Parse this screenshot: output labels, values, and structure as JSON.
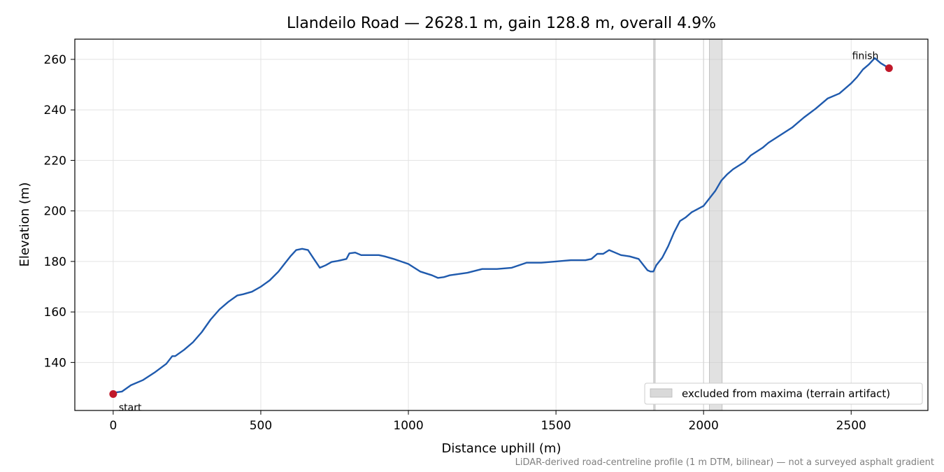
{
  "chart_data": {
    "type": "line",
    "title": "Llandeilo Road — 2628.1 m, gain 128.8 m, overall 4.9%",
    "xlabel": "Distance uphill (m)",
    "ylabel": "Elevation (m)",
    "xlim": [
      -130,
      2760
    ],
    "ylim": [
      121,
      268
    ],
    "xticks": [
      0,
      500,
      1000,
      1500,
      2000,
      2500
    ],
    "yticks": [
      140,
      160,
      180,
      200,
      220,
      240,
      260
    ],
    "grid": true,
    "series": [
      {
        "color": "#1f5aad",
        "x": [
          0,
          30,
          60,
          100,
          140,
          180,
          200,
          210,
          240,
          270,
          300,
          330,
          360,
          390,
          420,
          440,
          470,
          500,
          530,
          560,
          580,
          600,
          620,
          640,
          660,
          680,
          700,
          720,
          740,
          760,
          790,
          800,
          820,
          840,
          860,
          880,
          900,
          920,
          950,
          1000,
          1040,
          1080,
          1100,
          1120,
          1140,
          1200,
          1250,
          1300,
          1350,
          1400,
          1450,
          1500,
          1550,
          1600,
          1620,
          1640,
          1660,
          1680,
          1700,
          1720,
          1750,
          1780,
          1800,
          1810,
          1820,
          1830,
          1840,
          1860,
          1880,
          1900,
          1920,
          1940,
          1960,
          2000,
          2020,
          2040,
          2060,
          2080,
          2100,
          2140,
          2160,
          2200,
          2220,
          2260,
          2300,
          2340,
          2380,
          2420,
          2460,
          2500,
          2520,
          2540,
          2560,
          2580,
          2600,
          2628
        ],
        "y": [
          128,
          128.5,
          131,
          133,
          136,
          139.5,
          142.5,
          142.5,
          145,
          148,
          152,
          157,
          161,
          164,
          166.5,
          167,
          168,
          170,
          172.5,
          176,
          179,
          182,
          184.5,
          185,
          184.5,
          181,
          177.5,
          178.5,
          179.8,
          180.2,
          181,
          183.2,
          183.5,
          182.5,
          182.5,
          182.5,
          182.5,
          182,
          181,
          179,
          176,
          174.5,
          173.5,
          173.8,
          174.5,
          175.5,
          177,
          177,
          177.5,
          179.5,
          179.5,
          180,
          180.5,
          180.5,
          181,
          183,
          183,
          184.5,
          183.5,
          182.5,
          182,
          181,
          178,
          176.5,
          176,
          176,
          178.5,
          181.5,
          186,
          191.5,
          196,
          197.5,
          199.5,
          202,
          205,
          208,
          212,
          214.5,
          216.5,
          219.5,
          222,
          225,
          227,
          230,
          233,
          237,
          240.5,
          244.5,
          246.5,
          250.5,
          253,
          256,
          258,
          260.5,
          258.5,
          256.5
        ]
      }
    ],
    "annotations": [
      {
        "text": "start",
        "x": 0,
        "y": 127.5
      },
      {
        "text": "finish",
        "x": 2628.1,
        "y": 256.5
      }
    ],
    "excluded_regions": [
      [
        1831,
        1836
      ],
      [
        2020,
        2063
      ]
    ],
    "extra_vlines": [
      2000
    ],
    "legend": {
      "label": "excluded from maxima (terrain artifact)",
      "placement": "bottom-right"
    },
    "footnote": "LiDAR-derived road-centreline profile (1 m DTM, bilinear) — not a surveyed asphalt gradient",
    "colors": {
      "line": "#1f5aad",
      "marker": "#c0182a",
      "excluded_fill": "#c8c8c8",
      "grid": "#e3e3e3"
    }
  }
}
